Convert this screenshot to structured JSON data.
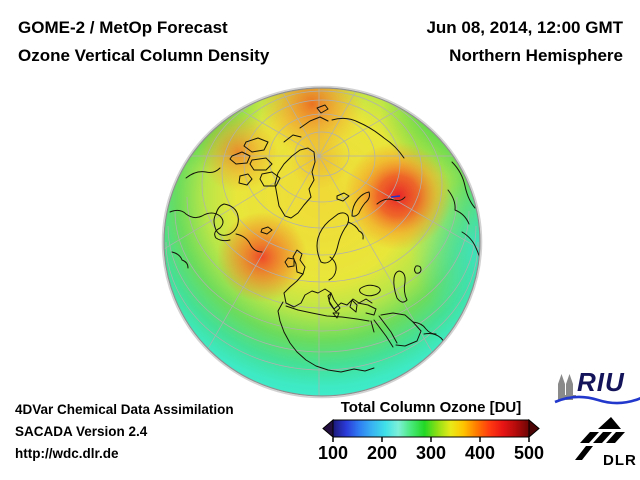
{
  "header": {
    "product_title": "GOME-2 / MetOp Forecast",
    "product_subtitle": "Ozone Vertical Column Density",
    "datetime": "Jun 08, 2014, 12:00 GMT",
    "hemisphere": "Northern Hemisphere"
  },
  "footer": {
    "line1": "4DVar Chemical Data Assimilation",
    "line2": "SACADA Version 2.4",
    "line3": "http://wdc.dlr.de"
  },
  "colorbar": {
    "title": "Total Column Ozone [DU]",
    "ticks": [
      "100",
      "200",
      "300",
      "400",
      "500"
    ],
    "gradient_stops": [
      "#1c1878",
      "#2a3ad8",
      "#2f7df2",
      "#38b4f2",
      "#3fe0e8",
      "#7df0d8",
      "#47e878",
      "#22d825",
      "#8fe015",
      "#e8ea18",
      "#ffc400",
      "#ff7a00",
      "#ff3a10",
      "#e81414",
      "#b30b0b",
      "#6e0505"
    ],
    "left_arrow_color": "#241040",
    "right_arrow_color": "#4c0404"
  },
  "logos": {
    "riu_text": "RIU",
    "riu_text_color": "#14145a",
    "riu_wave_color": "#2238cc",
    "riu_cathedral_color": "#8a8a8a",
    "dlr_text": "DLR",
    "dlr_color": "#000000"
  },
  "globe": {
    "graticule_color": "#b0b0b0",
    "coastline_color": "#14140a",
    "limb_color": "#8f8f8f"
  },
  "chart_data": {
    "type": "heatmap",
    "title": "Total Column Ozone [DU]",
    "units": "DU",
    "scale": {
      "min": 100,
      "max": 500,
      "ticks": [
        100,
        200,
        300,
        400,
        500
      ]
    },
    "projection": "orthographic, Northern Hemisphere",
    "valid_time": "Jun 08, 2014, 12:00 GMT",
    "features": [
      {
        "region": "tropical belt along globe rim",
        "approx_du": 260
      },
      {
        "region": "subtropics",
        "approx_du": 290
      },
      {
        "region": "European mid-latitudes",
        "approx_du": 340
      },
      {
        "region": "North Atlantic west of Ireland",
        "approx_du": 420
      },
      {
        "region": "Central Siberia",
        "approx_du": 440
      },
      {
        "region": "Arctic Canada / archipelago",
        "approx_du": 390
      },
      {
        "region": "East Siberian Arctic coast",
        "approx_du": 400
      },
      {
        "region": "North Pole vicinity",
        "approx_du": 370
      }
    ]
  }
}
